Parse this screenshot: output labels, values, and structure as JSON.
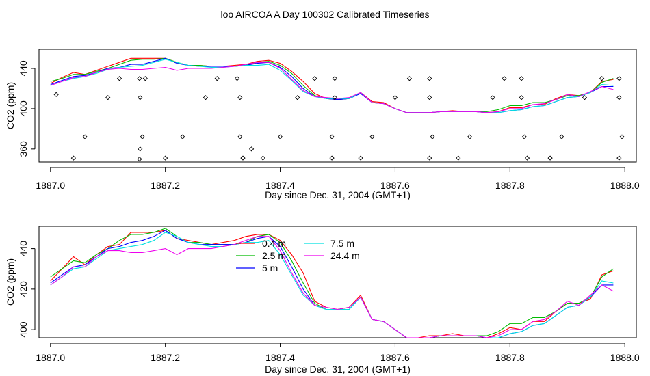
{
  "title": "loo AIRCOA A  Day 100302  Calibrated Timeseries",
  "colors": {
    "0.4 m": "#ff0000",
    "2.5 m": "#00bb00",
    "5 m": "#0000ff",
    "7.5 m": "#00e0e0",
    "24.4 m": "#ee00ee",
    "axis": "#000000",
    "background": "#ffffff"
  },
  "chart_data": [
    {
      "type": "line",
      "name": "panel-top",
      "xlabel": "Day since Dec. 31, 2004 (GMT+1)",
      "ylabel": "CO2 (ppm)",
      "xlim": [
        1886.98,
        1888.02
      ],
      "ylim": [
        347,
        459
      ],
      "xticks": [
        1887.0,
        1887.2,
        1887.4,
        1887.6,
        1887.8,
        1888.0
      ],
      "xtick_labels": [
        "1887.0",
        "1887.2",
        "1887.4",
        "1887.6",
        "1887.8",
        "1888.0"
      ],
      "yticks": [
        360,
        400,
        440
      ],
      "ytick_labels": [
        "360",
        "400",
        "440"
      ],
      "x": [
        1887.0,
        1887.02,
        1887.04,
        1887.06,
        1887.08,
        1887.1,
        1887.12,
        1887.14,
        1887.16,
        1887.18,
        1887.2,
        1887.22,
        1887.24,
        1887.26,
        1887.28,
        1887.3,
        1887.32,
        1887.34,
        1887.36,
        1887.38,
        1887.4,
        1887.42,
        1887.44,
        1887.46,
        1887.48,
        1887.5,
        1887.52,
        1887.54,
        1887.56,
        1887.58,
        1887.6,
        1887.62,
        1887.64,
        1887.66,
        1887.68,
        1887.7,
        1887.72,
        1887.74,
        1887.76,
        1887.78,
        1887.8,
        1887.82,
        1887.84,
        1887.86,
        1887.88,
        1887.9,
        1887.92,
        1887.94,
        1887.96,
        1887.98
      ],
      "series": [
        {
          "name": "0.4 m",
          "values": [
            425,
            431,
            436,
            434,
            438,
            442,
            446,
            450,
            450,
            450,
            450,
            446,
            443,
            443,
            442,
            442,
            443,
            444,
            447,
            448,
            445,
            437,
            427,
            415,
            410,
            409,
            410,
            416,
            407,
            406,
            400,
            396,
            396,
            396,
            397,
            398,
            397,
            397,
            396,
            397,
            401,
            401,
            404,
            404,
            410,
            414,
            413,
            416,
            427,
            429
          ]
        },
        {
          "name": "2.5 m",
          "values": [
            427,
            430,
            434,
            434,
            437,
            440,
            444,
            448,
            449,
            449,
            450,
            446,
            443,
            443,
            442,
            442,
            442,
            443,
            446,
            447,
            443,
            435,
            423,
            413,
            410,
            409,
            410,
            416,
            406,
            405,
            400,
            396,
            396,
            396,
            397,
            397,
            397,
            397,
            397,
            399,
            403,
            403,
            406,
            406,
            409,
            413,
            413,
            416,
            426,
            430
          ]
        },
        {
          "name": "5 m",
          "values": [
            424,
            428,
            432,
            433,
            436,
            440,
            441,
            444,
            444,
            447,
            450,
            445,
            443,
            442,
            442,
            442,
            442,
            443,
            445,
            446,
            441,
            432,
            420,
            412,
            410,
            409,
            410,
            415,
            406,
            405,
            400,
            396,
            396,
            396,
            397,
            397,
            397,
            397,
            396,
            396,
            398,
            399,
            402,
            403,
            407,
            411,
            412,
            416,
            422,
            422
          ]
        },
        {
          "name": "7.5 m",
          "values": [
            423,
            427,
            430,
            432,
            435,
            439,
            441,
            442,
            443,
            446,
            449,
            446,
            443,
            442,
            441,
            441,
            442,
            443,
            443,
            444,
            438,
            428,
            417,
            412,
            410,
            410,
            410,
            416,
            406,
            405,
            400,
            396,
            396,
            396,
            397,
            397,
            397,
            397,
            396,
            396,
            398,
            399,
            402,
            403,
            407,
            411,
            412,
            416,
            424,
            423
          ]
        },
        {
          "name": "24.4 m",
          "values": [
            423,
            427,
            431,
            432,
            436,
            439,
            440,
            439,
            439,
            440,
            441,
            438,
            440,
            440,
            440,
            441,
            442,
            444,
            446,
            446,
            440,
            429,
            418,
            412,
            411,
            410,
            411,
            416,
            406,
            405,
            400,
            396,
            396,
            396,
            397,
            397,
            397,
            397,
            396,
            397,
            400,
            400,
            404,
            405,
            409,
            414,
            412,
            417,
            422,
            419
          ]
        }
      ],
      "scatter": {
        "x": [
          1887.01,
          1887.04,
          1887.06,
          1887.1,
          1887.12,
          1887.155,
          1887.16,
          1887.156,
          1887.155,
          1887.156,
          1887.165,
          1887.2,
          1887.23,
          1887.27,
          1887.29,
          1887.325,
          1887.33,
          1887.33,
          1887.335,
          1887.35,
          1887.37,
          1887.4,
          1887.43,
          1887.46,
          1887.49,
          1887.495,
          1887.49,
          1887.495,
          1887.54,
          1887.56,
          1887.6,
          1887.625,
          1887.66,
          1887.66,
          1887.665,
          1887.66,
          1887.71,
          1887.73,
          1887.77,
          1887.79,
          1887.82,
          1887.82,
          1887.825,
          1887.83,
          1887.87,
          1887.89,
          1887.93,
          1887.96,
          1887.99,
          1887.99,
          1887.995,
          1887.99
        ],
        "y": [
          414,
          351,
          372,
          411,
          430,
          350,
          372,
          411,
          430,
          360,
          430,
          351,
          372,
          411,
          430,
          430,
          411,
          372,
          351,
          360,
          351,
          372,
          411,
          430,
          372,
          411,
          351,
          430,
          351,
          372,
          411,
          430,
          430,
          411,
          372,
          351,
          351,
          372,
          411,
          430,
          430,
          411,
          372,
          351,
          351,
          372,
          411,
          430,
          430,
          411,
          372,
          351
        ]
      }
    },
    {
      "type": "line",
      "name": "panel-bottom",
      "xlabel": "Day since Dec. 31, 2004 (GMT+1)",
      "ylabel": "CO2 (ppm)",
      "xlim": [
        1886.98,
        1888.02
      ],
      "ylim": [
        396,
        451
      ],
      "xticks": [
        1887.0,
        1887.2,
        1887.4,
        1887.6,
        1887.8,
        1888.0
      ],
      "xtick_labels": [
        "1887.0",
        "1887.2",
        "1887.4",
        "1887.6",
        "1887.8",
        "1888.0"
      ],
      "yticks": [
        400,
        420,
        440
      ],
      "ytick_labels": [
        "400",
        "420",
        "440"
      ],
      "x": [
        1887.0,
        1887.02,
        1887.04,
        1887.06,
        1887.08,
        1887.1,
        1887.12,
        1887.14,
        1887.16,
        1887.18,
        1887.2,
        1887.22,
        1887.24,
        1887.26,
        1887.28,
        1887.3,
        1887.32,
        1887.34,
        1887.36,
        1887.38,
        1887.4,
        1887.42,
        1887.44,
        1887.46,
        1887.48,
        1887.5,
        1887.52,
        1887.54,
        1887.56,
        1887.58,
        1887.6,
        1887.62,
        1887.64,
        1887.66,
        1887.68,
        1887.7,
        1887.72,
        1887.74,
        1887.76,
        1887.78,
        1887.8,
        1887.82,
        1887.84,
        1887.86,
        1887.88,
        1887.9,
        1887.92,
        1887.94,
        1887.96,
        1887.98
      ],
      "series": [
        {
          "name": "0.4 m",
          "values": [
            424,
            430,
            436,
            432,
            437,
            441,
            442,
            448,
            448,
            448,
            449,
            445,
            444,
            443,
            442,
            443,
            444,
            446,
            447,
            447,
            444,
            437,
            428,
            414,
            411,
            410,
            411,
            417,
            405,
            404,
            400,
            396,
            396,
            397,
            397,
            398,
            397,
            397,
            396,
            398,
            401,
            400,
            404,
            404,
            409,
            413,
            413,
            415,
            427,
            429
          ]
        },
        {
          "name": "2.5 m",
          "values": [
            426,
            430,
            434,
            433,
            437,
            440,
            444,
            447,
            447,
            448,
            450,
            446,
            443,
            443,
            442,
            442,
            442,
            443,
            446,
            447,
            443,
            434,
            423,
            413,
            410,
            410,
            411,
            416,
            405,
            404,
            400,
            396,
            396,
            396,
            397,
            397,
            397,
            397,
            397,
            399,
            403,
            403,
            406,
            406,
            409,
            413,
            413,
            416,
            426,
            430
          ]
        },
        {
          "name": "5 m",
          "values": [
            423,
            427,
            431,
            432,
            436,
            440,
            441,
            443,
            444,
            446,
            449,
            445,
            443,
            442,
            442,
            442,
            442,
            443,
            445,
            446,
            441,
            431,
            420,
            412,
            410,
            410,
            410,
            416,
            405,
            404,
            400,
            396,
            396,
            396,
            397,
            397,
            397,
            397,
            396,
            396,
            398,
            399,
            402,
            403,
            407,
            411,
            412,
            416,
            422,
            422
          ]
        },
        {
          "name": "7.5 m",
          "values": [
            422,
            426,
            430,
            431,
            435,
            439,
            440,
            441,
            442,
            444,
            448,
            446,
            443,
            442,
            441,
            441,
            442,
            443,
            443,
            444,
            437,
            427,
            417,
            412,
            410,
            410,
            410,
            416,
            405,
            404,
            400,
            396,
            396,
            396,
            397,
            397,
            397,
            397,
            396,
            396,
            398,
            399,
            402,
            403,
            407,
            411,
            412,
            416,
            424,
            423
          ]
        },
        {
          "name": "24.4 m",
          "values": [
            422,
            426,
            431,
            431,
            436,
            439,
            439,
            438,
            438,
            439,
            440,
            437,
            440,
            440,
            440,
            441,
            442,
            444,
            446,
            446,
            439,
            428,
            418,
            412,
            411,
            410,
            411,
            416,
            405,
            404,
            400,
            396,
            396,
            396,
            397,
            397,
            397,
            397,
            396,
            397,
            400,
            400,
            404,
            405,
            409,
            414,
            412,
            417,
            422,
            419
          ]
        }
      ],
      "legend": {
        "placement": "top-center",
        "entries": [
          "0.4 m",
          "2.5 m",
          "5 m",
          "7.5 m",
          "24.4 m"
        ]
      }
    }
  ]
}
